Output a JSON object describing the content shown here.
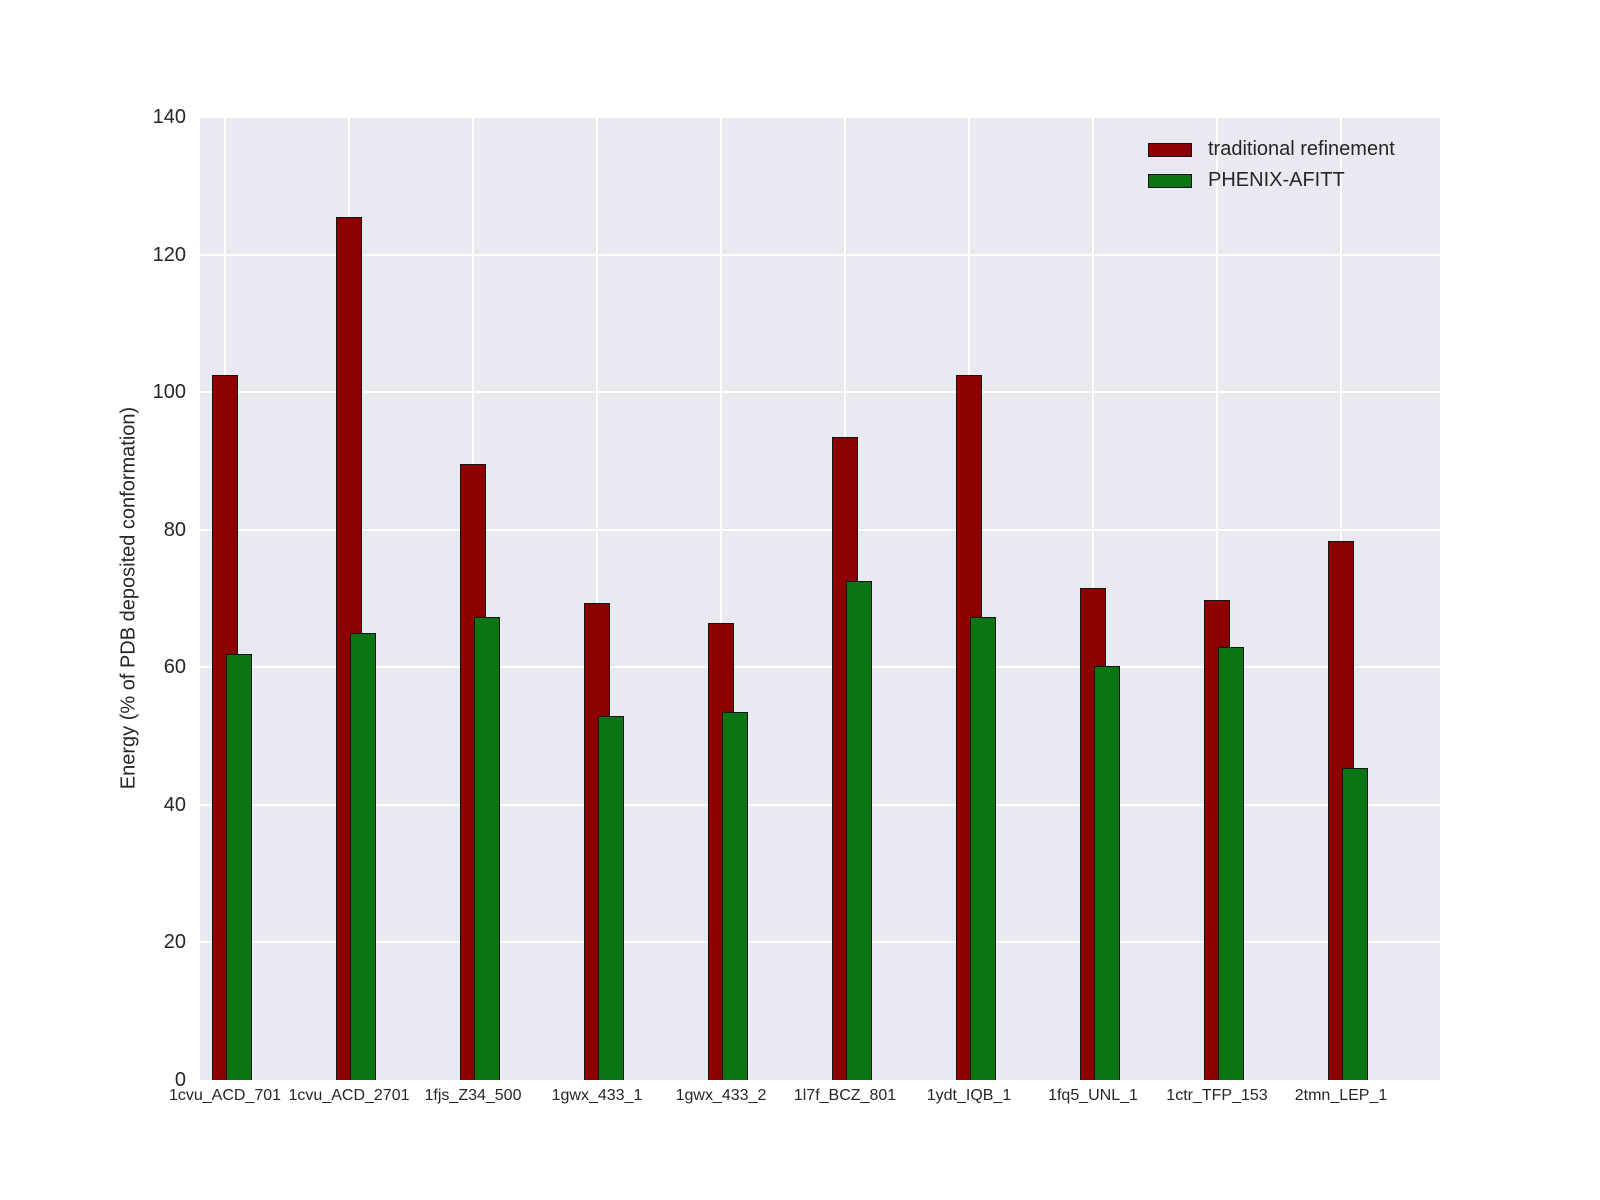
{
  "chart_data": {
    "type": "bar",
    "title": "",
    "xlabel": "",
    "ylabel": "Energy (% of PDB deposited conformation)",
    "ylim": [
      0,
      140
    ],
    "yticks": [
      0,
      20,
      40,
      60,
      80,
      100,
      120,
      140
    ],
    "grid": true,
    "legend_position": "upper right, inside plot",
    "categories": [
      "1cvu_ACD_701",
      "1cvu_ACD_2701",
      "1fjs_Z34_500",
      "1gwx_433_1",
      "1gwx_433_2",
      "1l7f_BCZ_801",
      "1ydt_IQB_1",
      "1fq5_UNL_1",
      "1ctr_TFP_153",
      "2tmn_LEP_1"
    ],
    "series": [
      {
        "name": "traditional refinement",
        "color": "#8b0000",
        "values": [
          102.5,
          125.5,
          89.5,
          69.3,
          66.5,
          93.5,
          102.5,
          71.5,
          69.8,
          78.3
        ]
      },
      {
        "name": "PHENIX-AFITT",
        "color": "#0b7514",
        "values": [
          62.0,
          65.0,
          67.3,
          52.9,
          53.5,
          72.5,
          67.3,
          60.2,
          63.0,
          45.3
        ]
      }
    ],
    "colors": {
      "plot_background": "#e9e9f1",
      "grid": "#ffffff",
      "bar_edge": "#151515",
      "tick_label": "#262626"
    }
  }
}
